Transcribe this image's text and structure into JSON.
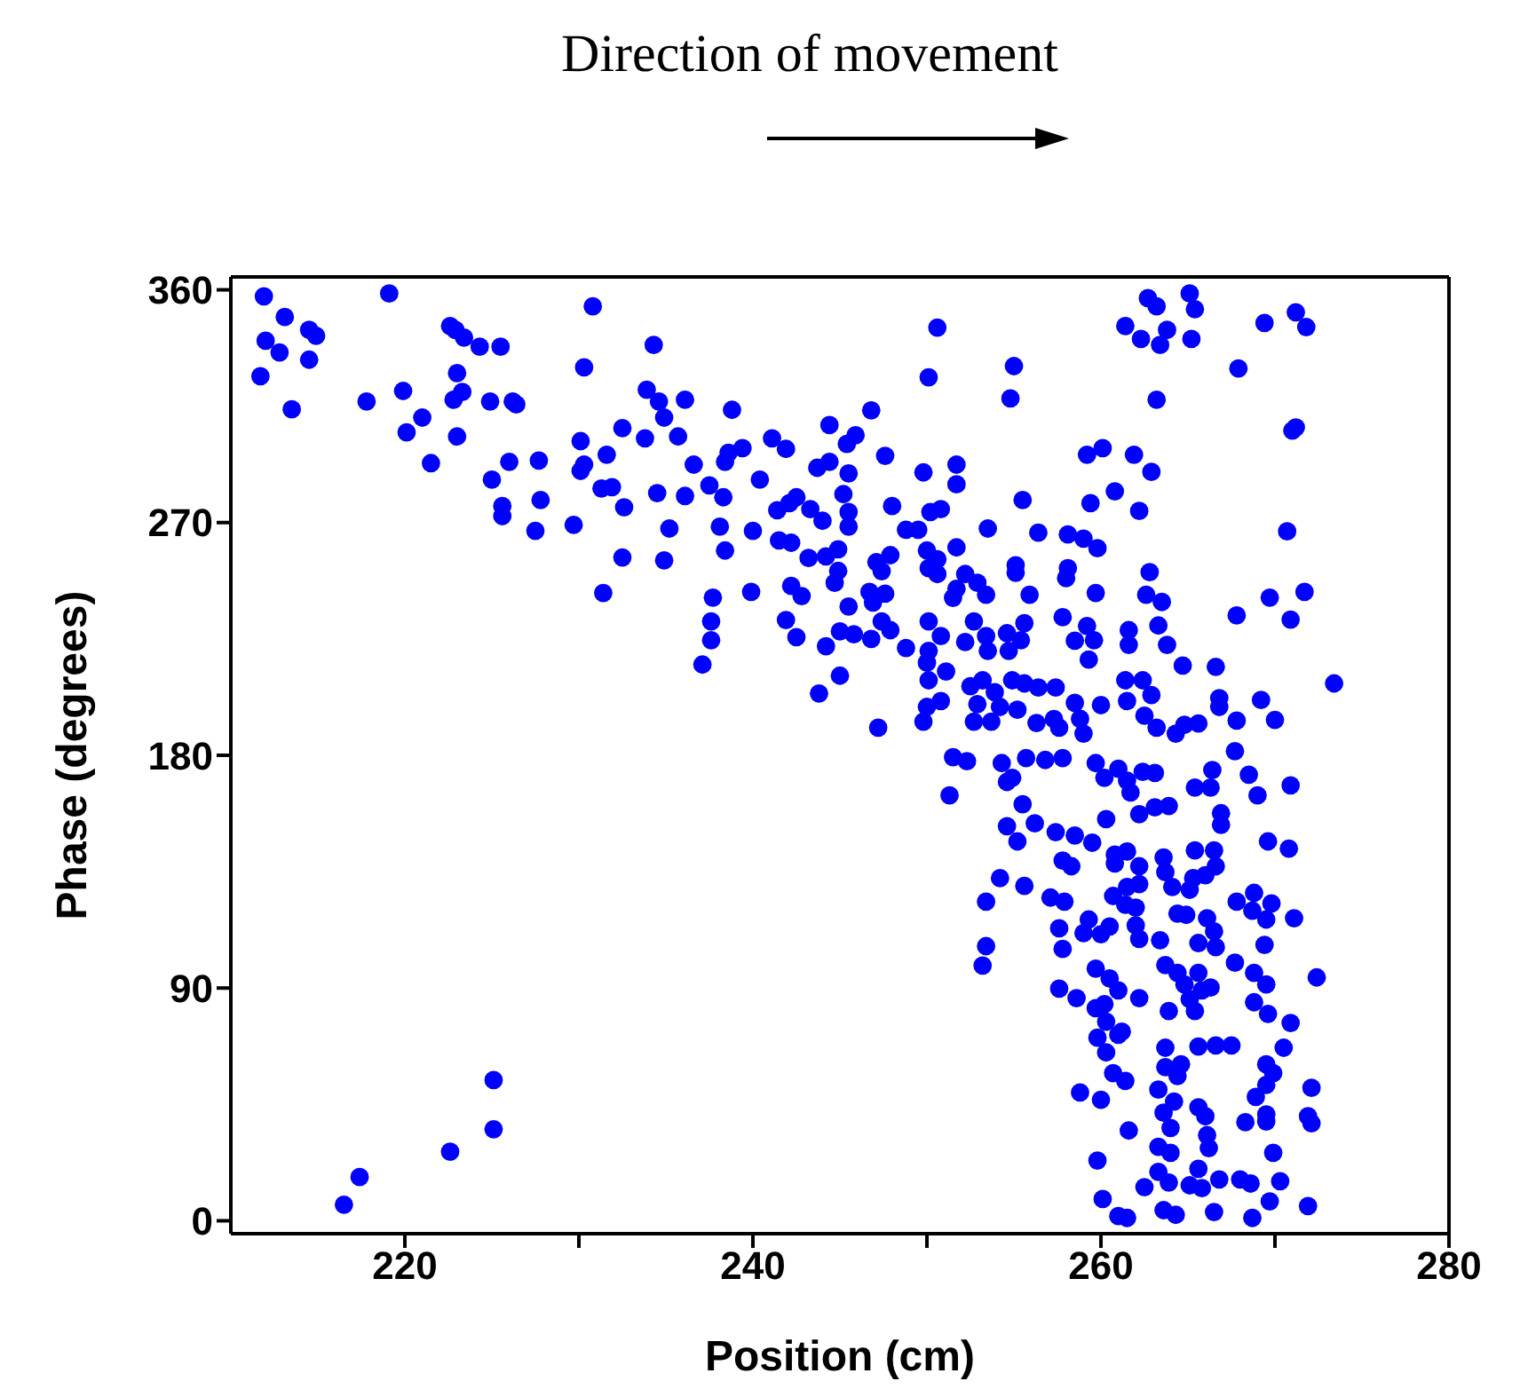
{
  "chart_data": {
    "type": "scatter",
    "title": "Direction of movement",
    "xlabel": "Position (cm)",
    "ylabel": "Phase (degrees)",
    "xlim": [
      210,
      280
    ],
    "ylim": [
      -5,
      365
    ],
    "xticks": [
      220,
      {
        "value": 230,
        "label": null
      },
      240,
      {
        "value": 250,
        "label": null
      },
      260,
      {
        "value": 270,
        "label": null
      },
      280
    ],
    "yticks": [
      0,
      90,
      180,
      270,
      360
    ],
    "marker": "circle",
    "series": [
      {
        "color": "#0000ff",
        "x": [
          211.9,
          213.1,
          212.0,
          212.8,
          214.5,
          214.9,
          214.5,
          211.7,
          213.5,
          219.1,
          217.8,
          219.9,
          221.0,
          220.1,
          221.5,
          222.6,
          222.9,
          223.4,
          224.3,
          225.5,
          223.0,
          223.3,
          222.8,
          223.0,
          224.9,
          226.2,
          226.4,
          225.0,
          226.0,
          227.7,
          225.6,
          225.6,
          227.8,
          227.5,
          229.7,
          230.1,
          230.3,
          230.8,
          230.1,
          230.3,
          231.6,
          231.3,
          231.9,
          232.6,
          231.4,
          232.5,
          232.5,
          233.8,
          234.3,
          233.9,
          234.6,
          234.9,
          235.7,
          236.1,
          234.5,
          235.2,
          234.9,
          236.6,
          236.1,
          237.5,
          238.3,
          238.1,
          238.4,
          237.7,
          237.6,
          237.6,
          237.1,
          238.8,
          239.4,
          238.4,
          238.6,
          240.4,
          239.9,
          240.0,
          241.1,
          241.9,
          241.4,
          242.1,
          242.5,
          241.5,
          242.2,
          243.2,
          242.2,
          242.8,
          241.9,
          242.5,
          243.8,
          244.2,
          245.0,
          243.3,
          244.0,
          243.7,
          244.4,
          244.4,
          245.4,
          245.9,
          245.5,
          245.2,
          245.5,
          245.5,
          244.9,
          244.2,
          244.9,
          244.7,
          245.5,
          245.0,
          245.8,
          250.6,
          250.1,
          255.0,
          254.8,
          246.8,
          247.6,
          249.8,
          251.7,
          251.7,
          248.0,
          250.2,
          250.8,
          253.5,
          256.4,
          255.5,
          248.8,
          249.5,
          250.0,
          250.6,
          251.7,
          247.9,
          247.1,
          247.4,
          250.1,
          250.6,
          252.2,
          252.9,
          253.4,
          251.7,
          251.5,
          255.1,
          255.1,
          255.9,
          246.7,
          247.6,
          246.9,
          247.4,
          247.9,
          248.8,
          250.1,
          250.8,
          250.1,
          250.0,
          250.1,
          250.0,
          249.8,
          250.8,
          247.2,
          252.2,
          252.7,
          253.4,
          253.5,
          254.6,
          254.7,
          255.4,
          255.6,
          251.1,
          252.5,
          252.9,
          252.7,
          253.2,
          253.9,
          254.2,
          253.7,
          254.9,
          255.6,
          256.4,
          255.2,
          256.3,
          257.4,
          257.3,
          257.6,
          258.5,
          258.8,
          259.0,
          260.0,
          257.8,
          258.1,
          258.0,
          258.1,
          259.0,
          259.8,
          259.7,
          258.5,
          259.2,
          259.6,
          259.3,
          259.4,
          259.2,
          260.1,
          260.8,
          261.9,
          262.9,
          262.2,
          261.6,
          261.6,
          262.6,
          262.8,
          263.3,
          263.5,
          263.8,
          264.7,
          266.6,
          261.4,
          261.5,
          262.4,
          262.9,
          262.5,
          263.2,
          264.3,
          264.8,
          265.6,
          266.8,
          266.8,
          267.8,
          269.2,
          270.0,
          267.8,
          269.7,
          270.9,
          271.7,
          270.7,
          273.4,
          267.7,
          261.4,
          262.3,
          262.7,
          263.2,
          263.8,
          263.4,
          265.1,
          265.4,
          265.2,
          263.2,
          267.9,
          269.4,
          271.2,
          271.8,
          271.0,
          271.2,
          246.8,
          251.3,
          251.5,
          252.3,
          254.3,
          254.9,
          254.6,
          255.7,
          256.8,
          257.8,
          255.5,
          254.6,
          255.2,
          256.2,
          257.4,
          258.5,
          259.5,
          257.8,
          258.3,
          254.2,
          255.6,
          253.4,
          257.1,
          257.9,
          257.6,
          257.8,
          253.4,
          253.2,
          259.7,
          260.2,
          261.0,
          261.5,
          261.7,
          262.4,
          263.1,
          262.2,
          263.1,
          263.9,
          260.3,
          260.8,
          261.5,
          260.8,
          262.2,
          262.2,
          261.5,
          260.7,
          261.4,
          262.0,
          259.3,
          259.0,
          260.0,
          260.5,
          262.0,
          262.2,
          263.4,
          263.6,
          263.7,
          264.1,
          265.1,
          265.4,
          266.5,
          266.6,
          266.0,
          265.3,
          264.4,
          264.9,
          266.1,
          266.5,
          265.6,
          266.6,
          266.4,
          265.4,
          266.3,
          266.9,
          266.9,
          268.5,
          269.0,
          270.9,
          269.6,
          270.8,
          267.8,
          268.8,
          268.7,
          269.8,
          269.5,
          271.1,
          269.4,
          267.7,
          259.7,
          260.5,
          261.0,
          257.6,
          258.6,
          259.7,
          260.2,
          262.2,
          263.7,
          264.4,
          264.8,
          265.6,
          265.8,
          266.3,
          265.1,
          265.4,
          263.9,
          268.8,
          269.5,
          268.8,
          269.6,
          270.9,
          272.4,
          260.3,
          261.2,
          259.8,
          260.3,
          261.0,
          263.7,
          263.7,
          264.6,
          264.4,
          265.6,
          266.6,
          267.5,
          270.5,
          269.5,
          269.9,
          269.5,
          268.9,
          272.1,
          260.7,
          261.4,
          258.8,
          260.0,
          263.3,
          264.2,
          263.6,
          264.0,
          265.6,
          266.0,
          266.1,
          266.2,
          261.6,
          268.3,
          269.5,
          269.5,
          271.9,
          272.1,
          269.9,
          263.3,
          264.0,
          259.8,
          263.3,
          263.9,
          262.5,
          265.6,
          265.1,
          265.8,
          266.8,
          268.0,
          268.6,
          270.3,
          260.1,
          261.0,
          261.5,
          263.6,
          264.3,
          266.5,
          268.7,
          269.7,
          271.9,
          216.5,
          217.4,
          222.6,
          225.1,
          225.1
        ],
        "values": [
          357.5,
          349.5,
          340.3,
          335.8,
          344.5,
          342.2,
          333,
          326.6,
          313.8,
          358.6,
          316.8,
          320.9,
          310.6,
          304.9,
          293,
          346,
          344.5,
          341.5,
          338,
          338,
          327.8,
          320.5,
          317.5,
          303.3,
          316.8,
          316.8,
          315.7,
          286.6,
          293.5,
          294,
          276.4,
          272.5,
          278.7,
          266.8,
          269.1,
          301.5,
          330,
          353.6,
          290,
          292.4,
          296.2,
          283.2,
          283.7,
          275.9,
          242.8,
          256.5,
          306.5,
          302.6,
          338.7,
          321.4,
          316.8,
          310.6,
          303.3,
          317.5,
          281.4,
          267.7,
          255.4,
          292.4,
          280.3,
          284.4,
          279.8,
          268.4,
          259.2,
          241,
          231.8,
          224.5,
          215.1,
          313.6,
          298.8,
          293.5,
          297,
          286.6,
          243.2,
          266.8,
          302.6,
          298.5,
          274.8,
          277.5,
          279.8,
          263.1,
          262.2,
          256.3,
          245.5,
          241.6,
          232.3,
          225.7,
          203.9,
          222.2,
          210.8,
          275.2,
          270.7,
          291.2,
          293.5,
          307.7,
          300.4,
          303.8,
          289,
          281,
          274.1,
          268.4,
          259.7,
          256.9,
          251.3,
          246.7,
          237.5,
          227.9,
          226.8,
          345.4,
          326.2,
          330.5,
          318,
          313.4,
          295.8,
          289.4,
          292.4,
          284.8,
          276.4,
          274.1,
          275.2,
          267.7,
          266.1,
          278.7,
          267.2,
          267.2,
          259.2,
          255.8,
          260.4,
          257.4,
          254.7,
          251.2,
          252.4,
          250.1,
          250.1,
          246.7,
          242.1,
          244.4,
          240.9,
          253.5,
          250.6,
          242.1,
          243.2,
          242.5,
          239.1,
          231.8,
          228.4,
          221.5,
          231.8,
          226.1,
          220.4,
          215.8,
          209,
          198.7,
          193,
          201,
          190.7,
          223.8,
          231.8,
          226.1,
          220.4,
          227.2,
          220.4,
          224.5,
          231.1,
          212.4,
          206.7,
          199.8,
          193,
          209,
          204.4,
          198.7,
          193,
          209,
          207.8,
          206.2,
          197.6,
          192.5,
          206.2,
          194,
          190.7,
          200.3,
          194.1,
          188.4,
          199.4,
          233.4,
          252.4,
          248.5,
          265.4,
          263.8,
          260.1,
          242.8,
          224.3,
          230,
          224.5,
          217,
          277.5,
          296.2,
          298.8,
          282.1,
          296.2,
          289.6,
          274.5,
          228.4,
          222.7,
          242.1,
          250.8,
          230.2,
          239.3,
          222.7,
          214.7,
          214.2,
          209,
          201,
          209,
          203.3,
          195.3,
          190.7,
          188.4,
          191.8,
          192.3,
          202.1,
          198.7,
          193.4,
          201.4,
          193.7,
          234.1,
          241,
          232.5,
          243.2,
          266.6,
          207.8,
          181.6,
          346,
          341,
          356.8,
          353.6,
          344.5,
          338.7,
          358.6,
          352.5,
          341,
          317.5,
          329.6,
          347.2,
          351.3,
          345.6,
          305.6,
          306.8,
          225,
          164.5,
          179.3,
          177.7,
          177,
          171.3,
          169.7,
          178.9,
          178.2,
          178.9,
          161.1,
          152.6,
          146.7,
          153.7,
          150.3,
          149,
          146.2,
          139.3,
          137.1,
          132.5,
          129.5,
          123.4,
          125,
          123.4,
          113.1,
          105.1,
          106.2,
          98.7,
          177,
          171.3,
          174.8,
          170.2,
          165.6,
          173.6,
          173.2,
          157.2,
          159.9,
          160.4,
          155.3,
          141.6,
          142.8,
          138.2,
          137.1,
          130.2,
          129.1,
          125.6,
          122.2,
          121.1,
          116.5,
          111.2,
          110.8,
          113.8,
          114.2,
          109,
          108.5,
          140.5,
          134.8,
          129.1,
          128,
          143.2,
          143.2,
          137.1,
          133.6,
          132.5,
          118.8,
          118.3,
          117,
          111.9,
          107.4,
          105.8,
          174.3,
          167.5,
          167.5,
          157.6,
          153.1,
          172.5,
          164.5,
          168.4,
          146.7,
          143.9,
          123.4,
          126.8,
          119.9,
          122.7,
          116.5,
          117,
          106.7,
          99.8,
          97.5,
          93.7,
          89.1,
          89.8,
          86.1,
          82.2,
          83.8,
          86.1,
          98.9,
          95.9,
          91.4,
          95.9,
          89.1,
          90.2,
          85.7,
          81.1,
          81.1,
          95.9,
          91.4,
          84.5,
          80,
          76.5,
          94.1,
          77,
          73.1,
          70.8,
          65.1,
          71.9,
          66.9,
          59.4,
          60.5,
          56,
          67.4,
          67.8,
          67.8,
          66.9,
          60.5,
          57.1,
          52.5,
          47.9,
          51.4,
          57.1,
          54.1,
          49.6,
          46.8,
          50.7,
          46.1,
          41.8,
          35.9,
          43.9,
          40.4,
          33.1,
          28.1,
          34.9,
          38.1,
          41.1,
          38.4,
          40.4,
          37.7,
          26.3,
          28.6,
          26.3,
          23.3,
          18.9,
          14.8,
          13,
          20.1,
          13.7,
          12.6,
          16,
          16,
          14.4,
          15.3,
          8.4,
          1.8,
          1.1,
          4.1,
          2.3,
          3.4,
          1.1,
          7.5,
          5.7,
          6.2,
          16.9,
          26.7,
          35.4,
          54.4
        ]
      }
    ]
  }
}
